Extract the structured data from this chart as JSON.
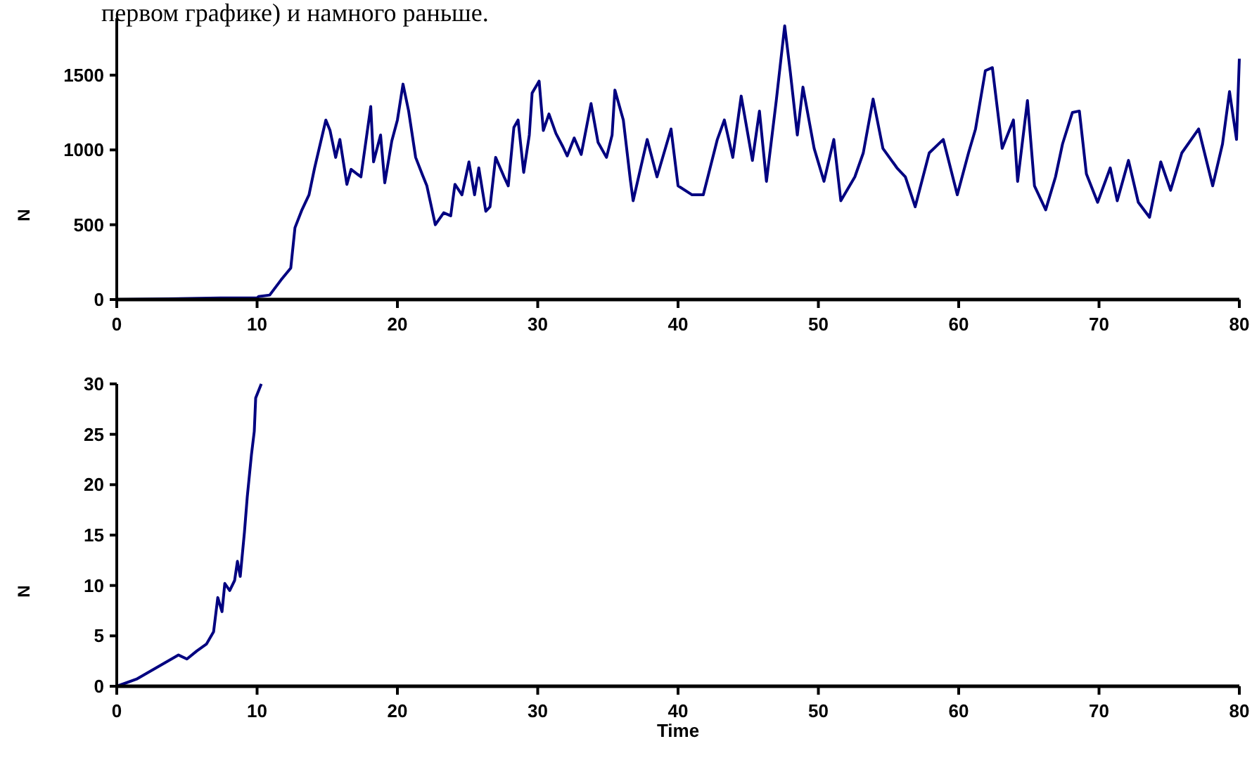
{
  "chart_data": [
    {
      "type": "line",
      "annotations": [
        "первом графике) и намного раньше."
      ],
      "ylabel": "N",
      "xlim": [
        0,
        80
      ],
      "ylim": [
        0,
        1880
      ],
      "xticks": [
        0,
        10,
        20,
        30,
        40,
        50,
        60,
        70,
        80
      ],
      "yticks": [
        0,
        500,
        1000,
        1500
      ],
      "marker": "none",
      "line_style": "solid",
      "series": [
        {
          "color": "#000080",
          "x": [
            0,
            7.4,
            10,
            10.1,
            10.9,
            11.7,
            12.4,
            12.7,
            13.2,
            13.7,
            14.1,
            14.4,
            14.9,
            15.2,
            15.6,
            15.9,
            16.4,
            16.7,
            17.4,
            18.1,
            18.3,
            18.8,
            19.1,
            19.6,
            20,
            20.4,
            20.8,
            21.3,
            21.8,
            22.1,
            22.7,
            23.3,
            23.8,
            24.1,
            24.6,
            25.1,
            25.5,
            25.8,
            26.3,
            26.6,
            27,
            27.6,
            27.9,
            28.3,
            28.6,
            29,
            29.4,
            29.6,
            30.1,
            30.4,
            30.8,
            31.3,
            31.8,
            32.1,
            32.6,
            33.1,
            33.8,
            34.3,
            34.9,
            35.3,
            35.5,
            36.1,
            36.6,
            36.8,
            37.8,
            38.5,
            39.5,
            40,
            41,
            41.8,
            42.8,
            43.3,
            43.9,
            44.5,
            45.3,
            45.8,
            46.3,
            47,
            47.6,
            48,
            48.5,
            48.9,
            49.7,
            50.4,
            51.1,
            51.6,
            52.6,
            53.2,
            53.9,
            54.6,
            55.6,
            56.2,
            56.9,
            57.9,
            58.9,
            59.9,
            60.7,
            61.2,
            61.9,
            62.4,
            63.1,
            63.9,
            64.2,
            64.9,
            65.4,
            66.2,
            66.9,
            67.4,
            68.1,
            68.6,
            69.1,
            69.9,
            70.8,
            71.3,
            72.1,
            72.8,
            73.6,
            74.4,
            75.1,
            75.9,
            77.1,
            78.1,
            78.8,
            79.3,
            79.8,
            80
          ],
          "values": [
            0,
            10,
            10,
            20,
            30,
            130,
            210,
            480,
            600,
            700,
            880,
            1000,
            1200,
            1130,
            950,
            1070,
            770,
            870,
            820,
            1290,
            920,
            1100,
            780,
            1060,
            1200,
            1440,
            1260,
            950,
            830,
            760,
            500,
            580,
            560,
            770,
            700,
            920,
            700,
            880,
            590,
            620,
            950,
            820,
            760,
            1150,
            1200,
            850,
            1100,
            1380,
            1460,
            1130,
            1240,
            1110,
            1020,
            960,
            1080,
            970,
            1310,
            1050,
            950,
            1100,
            1400,
            1200,
            800,
            660,
            1070,
            820,
            1140,
            760,
            700,
            700,
            1070,
            1200,
            950,
            1360,
            930,
            1260,
            790,
            1330,
            1830,
            1520,
            1100,
            1420,
            1010,
            790,
            1070,
            660,
            820,
            980,
            1340,
            1010,
            880,
            820,
            620,
            980,
            1070,
            700,
            980,
            1140,
            1530,
            1550,
            1010,
            1200,
            790,
            1330,
            760,
            600,
            820,
            1040,
            1250,
            1260,
            840,
            650,
            880,
            660,
            930,
            650,
            550,
            920,
            730,
            980,
            1140,
            760,
            1040,
            1390,
            1070,
            1610
          ]
        }
      ]
    },
    {
      "type": "line",
      "xlabel": "Time",
      "ylabel": "N",
      "xlim": [
        0,
        80
      ],
      "ylim": [
        0,
        30
      ],
      "xticks": [
        0,
        10,
        20,
        30,
        40,
        50,
        60,
        70,
        80
      ],
      "yticks": [
        0,
        5,
        10,
        15,
        20,
        25,
        30
      ],
      "marker": "none",
      "line_style": "solid",
      "series": [
        {
          "color": "#000080",
          "x": [
            0,
            1.4,
            2.4,
            3.4,
            4.4,
            5,
            5.7,
            6.4,
            6.9,
            7.2,
            7.5,
            7.7,
            8.05,
            8.4,
            8.6,
            8.8,
            9.1,
            9.3,
            9.6,
            9.8,
            9.9,
            10.3
          ],
          "values": [
            0,
            0.7,
            1.5,
            2.3,
            3.1,
            2.7,
            3.5,
            4.2,
            5.4,
            8.8,
            7.4,
            10.2,
            9.5,
            10.5,
            12.4,
            10.9,
            15.3,
            18.8,
            23,
            25.3,
            28.6,
            30
          ]
        }
      ]
    }
  ]
}
